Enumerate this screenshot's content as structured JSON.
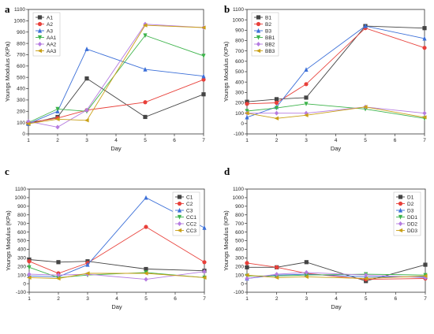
{
  "chart_data": [
    {
      "panel": "a",
      "type": "line",
      "xlabel": "Day",
      "ylabel": "Youngs Modulus (KPa)",
      "xlim": [
        1,
        7
      ],
      "ylim": [
        0,
        1100
      ],
      "xticks": [
        1,
        2,
        3,
        4,
        5,
        6,
        7
      ],
      "yticks": [
        0,
        100,
        200,
        300,
        400,
        500,
        600,
        700,
        800,
        900,
        1000,
        1100
      ],
      "legend": "top-left",
      "x": [
        1,
        2,
        3,
        5,
        7
      ],
      "series": [
        {
          "name": "A1",
          "color": "#444444",
          "marker": "square",
          "values": [
            90,
            150,
            490,
            150,
            350
          ]
        },
        {
          "name": "A2",
          "color": "#e8403a",
          "marker": "circle",
          "values": [
            100,
            140,
            210,
            280,
            480
          ]
        },
        {
          "name": "A3",
          "color": "#3b6fd8",
          "marker": "triangle-up",
          "values": [
            90,
            200,
            750,
            570,
            510
          ]
        },
        {
          "name": "AA1",
          "color": "#3cb34a",
          "marker": "triangle-down",
          "values": [
            100,
            220,
            200,
            870,
            690
          ]
        },
        {
          "name": "AA2",
          "color": "#b57be0",
          "marker": "diamond",
          "values": [
            110,
            60,
            210,
            970,
            940
          ]
        },
        {
          "name": "AA3",
          "color": "#c9a017",
          "marker": "triangle-left",
          "values": [
            90,
            130,
            120,
            960,
            940
          ]
        }
      ]
    },
    {
      "panel": "b",
      "type": "line",
      "xlabel": "Day",
      "ylabel": "Youngs Modulus (KPa)",
      "xlim": [
        1,
        7
      ],
      "ylim": [
        -100,
        1100
      ],
      "xticks": [
        1,
        2,
        3,
        4,
        5,
        6,
        7
      ],
      "yticks": [
        -100,
        0,
        100,
        200,
        300,
        400,
        500,
        600,
        700,
        800,
        900,
        1000,
        1100
      ],
      "legend": "top-left",
      "x": [
        1,
        2,
        3,
        5,
        7
      ],
      "series": [
        {
          "name": "B1",
          "color": "#444444",
          "marker": "square",
          "values": [
            210,
            235,
            250,
            940,
            920
          ]
        },
        {
          "name": "B2",
          "color": "#e8403a",
          "marker": "circle",
          "values": [
            190,
            200,
            380,
            920,
            730
          ]
        },
        {
          "name": "B3",
          "color": "#3b6fd8",
          "marker": "triangle-up",
          "values": [
            60,
            160,
            520,
            940,
            820
          ]
        },
        {
          "name": "BB1",
          "color": "#3cb34a",
          "marker": "triangle-down",
          "values": [
            120,
            150,
            190,
            140,
            50
          ]
        },
        {
          "name": "BB2",
          "color": "#b57be0",
          "marker": "diamond",
          "values": [
            100,
            100,
            100,
            160,
            100
          ]
        },
        {
          "name": "BB3",
          "color": "#c9a017",
          "marker": "triangle-left",
          "values": [
            100,
            50,
            80,
            160,
            60
          ]
        }
      ]
    },
    {
      "panel": "c",
      "type": "line",
      "xlabel": "Day",
      "ylabel": "Youngs Modulus (KPa)",
      "xlim": [
        1,
        7
      ],
      "ylim": [
        -100,
        1100
      ],
      "xticks": [
        1,
        2,
        3,
        4,
        5,
        6,
        7
      ],
      "yticks": [
        -100,
        0,
        100,
        200,
        300,
        400,
        500,
        600,
        700,
        800,
        900,
        1000,
        1100
      ],
      "legend": "top-right",
      "x": [
        1,
        2,
        3,
        5,
        7
      ],
      "series": [
        {
          "name": "C1",
          "color": "#444444",
          "marker": "square",
          "values": [
            280,
            250,
            260,
            170,
            150
          ]
        },
        {
          "name": "C2",
          "color": "#e8403a",
          "marker": "circle",
          "values": [
            260,
            120,
            240,
            660,
            250
          ]
        },
        {
          "name": "C3",
          "color": "#3b6fd8",
          "marker": "triangle-up",
          "values": [
            90,
            80,
            220,
            1000,
            650
          ]
        },
        {
          "name": "CC1",
          "color": "#3cb34a",
          "marker": "triangle-down",
          "values": [
            190,
            70,
            100,
            130,
            70
          ]
        },
        {
          "name": "CC2",
          "color": "#b57be0",
          "marker": "diamond",
          "values": [
            110,
            100,
            110,
            50,
            140
          ]
        },
        {
          "name": "CC3",
          "color": "#c9a017",
          "marker": "triangle-left",
          "values": [
            70,
            60,
            120,
            120,
            70
          ]
        }
      ]
    },
    {
      "panel": "d",
      "type": "line",
      "xlabel": "Day",
      "ylabel": "Youngs Modulus (KPa)",
      "xlim": [
        1,
        7
      ],
      "ylim": [
        -100,
        1100
      ],
      "xticks": [
        1,
        2,
        3,
        4,
        5,
        6,
        7
      ],
      "yticks": [
        -100,
        0,
        100,
        200,
        300,
        400,
        500,
        600,
        700,
        800,
        900,
        1000,
        1100
      ],
      "legend": "top-right",
      "x": [
        1,
        2,
        3,
        5,
        7
      ],
      "series": [
        {
          "name": "D1",
          "color": "#444444",
          "marker": "square",
          "values": [
            190,
            190,
            250,
            30,
            220
          ]
        },
        {
          "name": "D2",
          "color": "#e8403a",
          "marker": "circle",
          "values": [
            240,
            190,
            120,
            50,
            60
          ]
        },
        {
          "name": "D3",
          "color": "#3b6fd8",
          "marker": "triangle-up",
          "values": [
            60,
            100,
            110,
            80,
            80
          ]
        },
        {
          "name": "DD1",
          "color": "#3cb34a",
          "marker": "triangle-down",
          "values": [
            90,
            90,
            100,
            110,
            100
          ]
        },
        {
          "name": "DD2",
          "color": "#b57be0",
          "marker": "diamond",
          "values": [
            60,
            110,
            130,
            100,
            70
          ]
        },
        {
          "name": "DD3",
          "color": "#c9a017",
          "marker": "triangle-left",
          "values": [
            100,
            70,
            80,
            60,
            90
          ]
        }
      ]
    }
  ]
}
